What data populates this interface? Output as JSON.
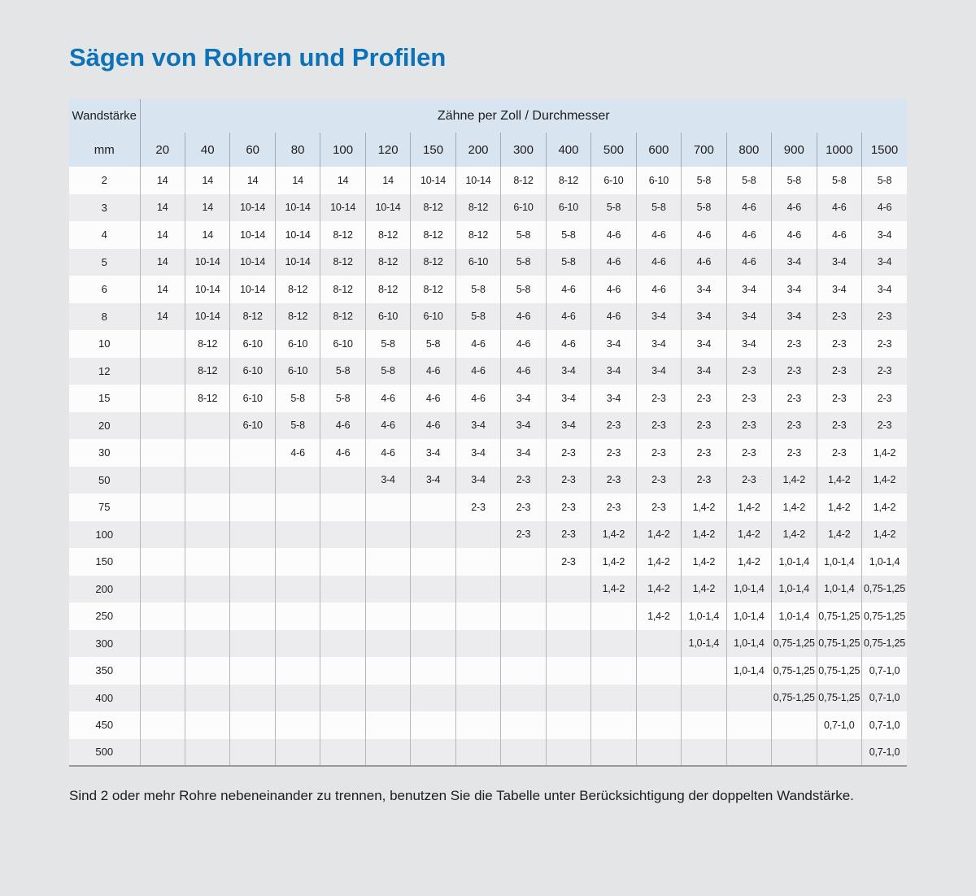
{
  "page": {
    "title": "Sägen von Rohren und Profilen",
    "footnote": "Sind 2 oder mehr Rohre nebeneinander zu trennen, benutzen Sie die Tabelle unter Berücksichtigung der doppelten Wandstärke."
  },
  "table": {
    "corner_header": "Wandstärke",
    "unit_label": "mm",
    "group_header": "Zähne per Zoll / Durchmesser",
    "columns": [
      "20",
      "40",
      "60",
      "80",
      "100",
      "120",
      "150",
      "200",
      "300",
      "400",
      "500",
      "600",
      "700",
      "800",
      "900",
      "1000",
      "1500"
    ],
    "rows": [
      {
        "label": "2",
        "values": [
          "14",
          "14",
          "14",
          "14",
          "14",
          "14",
          "10-14",
          "10-14",
          "8-12",
          "8-12",
          "6-10",
          "6-10",
          "5-8",
          "5-8",
          "5-8",
          "5-8",
          "5-8"
        ]
      },
      {
        "label": "3",
        "values": [
          "14",
          "14",
          "10-14",
          "10-14",
          "10-14",
          "10-14",
          "8-12",
          "8-12",
          "6-10",
          "6-10",
          "5-8",
          "5-8",
          "5-8",
          "4-6",
          "4-6",
          "4-6",
          "4-6"
        ]
      },
      {
        "label": "4",
        "values": [
          "14",
          "14",
          "10-14",
          "10-14",
          "8-12",
          "8-12",
          "8-12",
          "8-12",
          "5-8",
          "5-8",
          "4-6",
          "4-6",
          "4-6",
          "4-6",
          "4-6",
          "4-6",
          "3-4"
        ]
      },
      {
        "label": "5",
        "values": [
          "14",
          "10-14",
          "10-14",
          "10-14",
          "8-12",
          "8-12",
          "8-12",
          "6-10",
          "5-8",
          "5-8",
          "4-6",
          "4-6",
          "4-6",
          "4-6",
          "3-4",
          "3-4",
          "3-4"
        ]
      },
      {
        "label": "6",
        "values": [
          "14",
          "10-14",
          "10-14",
          "8-12",
          "8-12",
          "8-12",
          "8-12",
          "5-8",
          "5-8",
          "4-6",
          "4-6",
          "4-6",
          "3-4",
          "3-4",
          "3-4",
          "3-4",
          "3-4"
        ]
      },
      {
        "label": "8",
        "values": [
          "14",
          "10-14",
          "8-12",
          "8-12",
          "8-12",
          "6-10",
          "6-10",
          "5-8",
          "4-6",
          "4-6",
          "4-6",
          "3-4",
          "3-4",
          "3-4",
          "3-4",
          "2-3",
          "2-3"
        ]
      },
      {
        "label": "10",
        "values": [
          "",
          "8-12",
          "6-10",
          "6-10",
          "6-10",
          "5-8",
          "5-8",
          "4-6",
          "4-6",
          "4-6",
          "3-4",
          "3-4",
          "3-4",
          "3-4",
          "2-3",
          "2-3",
          "2-3"
        ]
      },
      {
        "label": "12",
        "values": [
          "",
          "8-12",
          "6-10",
          "6-10",
          "5-8",
          "5-8",
          "4-6",
          "4-6",
          "4-6",
          "3-4",
          "3-4",
          "3-4",
          "3-4",
          "2-3",
          "2-3",
          "2-3",
          "2-3"
        ]
      },
      {
        "label": "15",
        "values": [
          "",
          "8-12",
          "6-10",
          "5-8",
          "5-8",
          "4-6",
          "4-6",
          "4-6",
          "3-4",
          "3-4",
          "3-4",
          "2-3",
          "2-3",
          "2-3",
          "2-3",
          "2-3",
          "2-3"
        ]
      },
      {
        "label": "20",
        "values": [
          "",
          "",
          "6-10",
          "5-8",
          "4-6",
          "4-6",
          "4-6",
          "3-4",
          "3-4",
          "3-4",
          "2-3",
          "2-3",
          "2-3",
          "2-3",
          "2-3",
          "2-3",
          "2-3"
        ]
      },
      {
        "label": "30",
        "values": [
          "",
          "",
          "",
          "4-6",
          "4-6",
          "4-6",
          "3-4",
          "3-4",
          "3-4",
          "2-3",
          "2-3",
          "2-3",
          "2-3",
          "2-3",
          "2-3",
          "2-3",
          "1,4-2"
        ]
      },
      {
        "label": "50",
        "values": [
          "",
          "",
          "",
          "",
          "",
          "3-4",
          "3-4",
          "3-4",
          "2-3",
          "2-3",
          "2-3",
          "2-3",
          "2-3",
          "2-3",
          "1,4-2",
          "1,4-2",
          "1,4-2"
        ]
      },
      {
        "label": "75",
        "values": [
          "",
          "",
          "",
          "",
          "",
          "",
          "",
          "2-3",
          "2-3",
          "2-3",
          "2-3",
          "2-3",
          "1,4-2",
          "1,4-2",
          "1,4-2",
          "1,4-2",
          "1,4-2"
        ]
      },
      {
        "label": "100",
        "values": [
          "",
          "",
          "",
          "",
          "",
          "",
          "",
          "",
          "2-3",
          "2-3",
          "1,4-2",
          "1,4-2",
          "1,4-2",
          "1,4-2",
          "1,4-2",
          "1,4-2",
          "1,4-2"
        ]
      },
      {
        "label": "150",
        "values": [
          "",
          "",
          "",
          "",
          "",
          "",
          "",
          "",
          "",
          "2-3",
          "1,4-2",
          "1,4-2",
          "1,4-2",
          "1,4-2",
          "1,0-1,4",
          "1,0-1,4",
          "1,0-1,4"
        ]
      },
      {
        "label": "200",
        "values": [
          "",
          "",
          "",
          "",
          "",
          "",
          "",
          "",
          "",
          "",
          "1,4-2",
          "1,4-2",
          "1,4-2",
          "1,0-1,4",
          "1,0-1,4",
          "1,0-1,4",
          "0,75-1,25"
        ]
      },
      {
        "label": "250",
        "values": [
          "",
          "",
          "",
          "",
          "",
          "",
          "",
          "",
          "",
          "",
          "",
          "1,4-2",
          "1,0-1,4",
          "1,0-1,4",
          "1,0-1,4",
          "0,75-1,25",
          "0,75-1,25"
        ]
      },
      {
        "label": "300",
        "values": [
          "",
          "",
          "",
          "",
          "",
          "",
          "",
          "",
          "",
          "",
          "",
          "",
          "1,0-1,4",
          "1,0-1,4",
          "0,75-1,25",
          "0,75-1,25",
          "0,75-1,25"
        ]
      },
      {
        "label": "350",
        "values": [
          "",
          "",
          "",
          "",
          "",
          "",
          "",
          "",
          "",
          "",
          "",
          "",
          "",
          "1,0-1,4",
          "0,75-1,25",
          "0,75-1,25",
          "0,7-1,0"
        ]
      },
      {
        "label": "400",
        "values": [
          "",
          "",
          "",
          "",
          "",
          "",
          "",
          "",
          "",
          "",
          "",
          "",
          "",
          "",
          "0,75-1,25",
          "0,75-1,25",
          "0,7-1,0"
        ]
      },
      {
        "label": "450",
        "values": [
          "",
          "",
          "",
          "",
          "",
          "",
          "",
          "",
          "",
          "",
          "",
          "",
          "",
          "",
          "",
          "0,7-1,0",
          "0,7-1,0"
        ]
      },
      {
        "label": "500",
        "values": [
          "",
          "",
          "",
          "",
          "",
          "",
          "",
          "",
          "",
          "",
          "",
          "",
          "",
          "",
          "",
          "",
          "0,7-1,0"
        ]
      }
    ]
  },
  "colors": {
    "title_accent": "#0d73b8",
    "header_bg": "#d9e4f1",
    "row_bg": "#fcfcfd",
    "row_alt_bg": "#ececee",
    "grid_line": "#b5b8bb",
    "header_grid_line": "#a2aab4",
    "page_bg": "#e4e5e6",
    "text": "#1d1d1b",
    "table_bottom_border": "#97999b"
  }
}
